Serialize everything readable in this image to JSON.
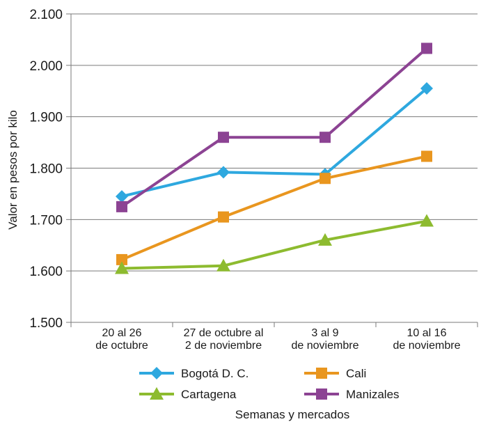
{
  "chart_data": {
    "type": "line",
    "title": "",
    "xlabel": "Semanas y mercados",
    "ylabel": "Valor en pesos por kilo",
    "ylim": [
      1500,
      2100
    ],
    "yticks": [
      1500,
      1600,
      1700,
      1800,
      1900,
      2000,
      2100
    ],
    "ytick_labels": [
      "1.500",
      "1.600",
      "1.700",
      "1.800",
      "1.900",
      "2.000",
      "2.100"
    ],
    "categories": [
      [
        "20 al 26",
        "de octubre"
      ],
      [
        "27 de octubre al",
        "2 de noviembre"
      ],
      [
        "3 al 9",
        "de noviembre"
      ],
      [
        "10 al 16",
        "de noviembre"
      ]
    ],
    "grid": true,
    "legend_position": "bottom",
    "series": [
      {
        "name": "Bogotá D. C.",
        "color": "#2ea8df",
        "marker": "diamond",
        "values": [
          1745,
          1792,
          1788,
          1955
        ]
      },
      {
        "name": "Cali",
        "color": "#e9961f",
        "marker": "square",
        "values": [
          1622,
          1705,
          1780,
          1823
        ]
      },
      {
        "name": "Cartagena",
        "color": "#8dbb2f",
        "marker": "triangle",
        "values": [
          1605,
          1610,
          1660,
          1697
        ]
      },
      {
        "name": "Manizales",
        "color": "#8c4393",
        "marker": "square",
        "values": [
          1725,
          1860,
          1860,
          2033
        ]
      }
    ]
  }
}
